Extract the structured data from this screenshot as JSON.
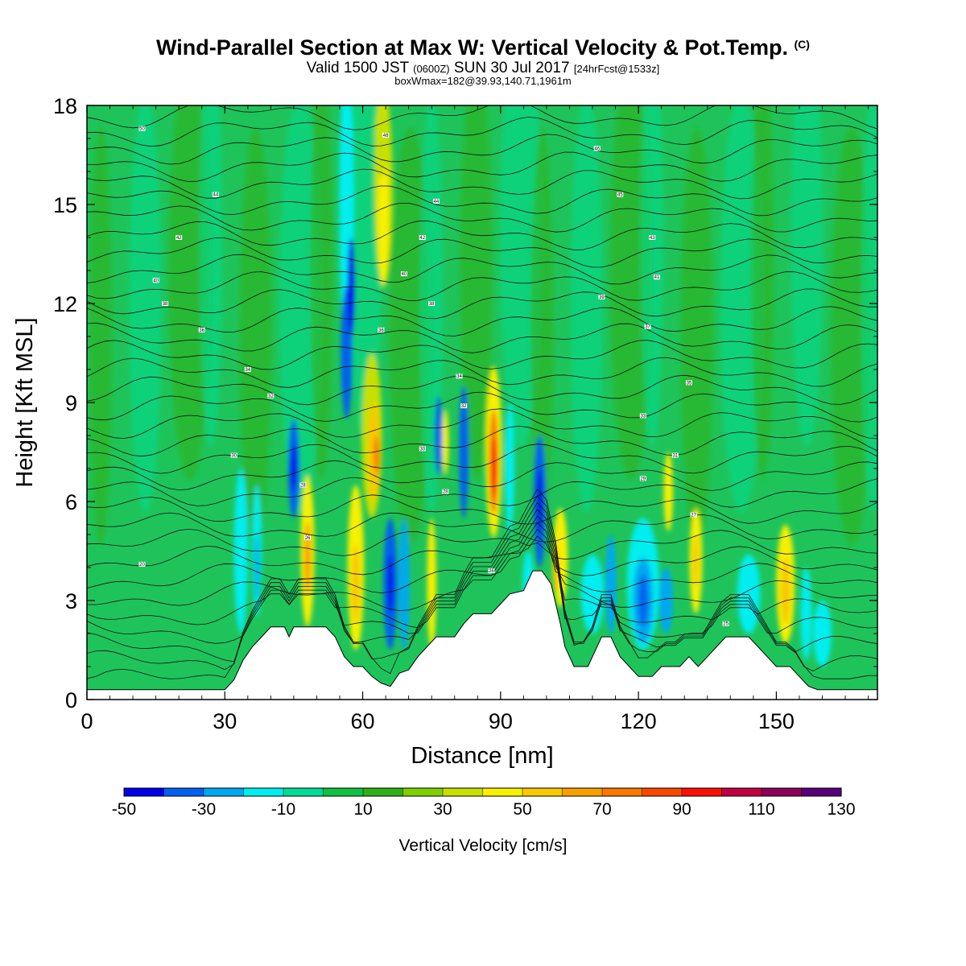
{
  "header": {
    "title": "Wind-Parallel Section at Max W: Vertical Velocity & Pot.Temp.",
    "title_tag": "(C)",
    "valid_a": "Valid 1500 JST",
    "valid_zulu": "(0600Z)",
    "valid_b": "SUN 30 Jul 2017",
    "forecast": "[24hrFcst@1533z]",
    "box_info": "boxWmax=182@39.93,140.71,1961m"
  },
  "chart_data": {
    "type": "heatmap",
    "xlabel": "Distance [nm]",
    "ylabel": "Height [Kft MSL]",
    "xlim": [
      0,
      172
    ],
    "ylim": [
      0,
      18
    ],
    "x_ticks": [
      0,
      30,
      60,
      90,
      120,
      150
    ],
    "y_ticks": [
      0,
      3,
      6,
      9,
      12,
      15,
      18
    ],
    "colorbar": {
      "title": "Vertical Velocity [cm/s]",
      "levels": [
        -50,
        -40,
        -30,
        -20,
        -10,
        0,
        10,
        20,
        30,
        40,
        50,
        60,
        70,
        80,
        90,
        100,
        110,
        120,
        130
      ],
      "labels": [
        "-50",
        "-30",
        "-10",
        "10",
        "30",
        "50",
        "70",
        "90",
        "110",
        "130"
      ],
      "colors": [
        "#0000e8",
        "#0060f0",
        "#00a8f0",
        "#00eef0",
        "#00dc96",
        "#10c040",
        "#2eae16",
        "#7ed000",
        "#c8e000",
        "#f8f000",
        "#f8c800",
        "#f8a000",
        "#f87800",
        "#f84800",
        "#f81000",
        "#c00040",
        "#8c0058",
        "#580078"
      ]
    },
    "terrain": [
      [
        0,
        0.3
      ],
      [
        30,
        0.3
      ],
      [
        32,
        0.6
      ],
      [
        34,
        1.2
      ],
      [
        36,
        1.6
      ],
      [
        38,
        1.9
      ],
      [
        40,
        2.2
      ],
      [
        43,
        2.2
      ],
      [
        44,
        1.9
      ],
      [
        45,
        2.2
      ],
      [
        52,
        2.2
      ],
      [
        54,
        1.9
      ],
      [
        56,
        1.3
      ],
      [
        58,
        1.0
      ],
      [
        60,
        1.0
      ],
      [
        62,
        0.7
      ],
      [
        64,
        0.5
      ],
      [
        66,
        0.4
      ],
      [
        68,
        0.8
      ],
      [
        70,
        0.9
      ],
      [
        72,
        1.3
      ],
      [
        74,
        1.6
      ],
      [
        76,
        1.9
      ],
      [
        80,
        1.9
      ],
      [
        82,
        2.3
      ],
      [
        84,
        2.6
      ],
      [
        88,
        2.6
      ],
      [
        90,
        2.9
      ],
      [
        92,
        3.2
      ],
      [
        95,
        3.3
      ],
      [
        96,
        3.6
      ],
      [
        97,
        3.9
      ],
      [
        99,
        3.9
      ],
      [
        101,
        3.5
      ],
      [
        103,
        2.3
      ],
      [
        104,
        1.6
      ],
      [
        105,
        1.3
      ],
      [
        106,
        1.0
      ],
      [
        109,
        1.0
      ],
      [
        110,
        1.3
      ],
      [
        111,
        1.6
      ],
      [
        112,
        1.9
      ],
      [
        114,
        1.9
      ],
      [
        115,
        1.6
      ],
      [
        116,
        1.3
      ],
      [
        118,
        1.0
      ],
      [
        120,
        0.7
      ],
      [
        123,
        0.7
      ],
      [
        125,
        1.0
      ],
      [
        129,
        1.0
      ],
      [
        131,
        1.3
      ],
      [
        133,
        1.0
      ],
      [
        135,
        1.3
      ],
      [
        137,
        1.6
      ],
      [
        139,
        1.9
      ],
      [
        144,
        1.9
      ],
      [
        146,
        1.6
      ],
      [
        148,
        1.3
      ],
      [
        150,
        1.0
      ],
      [
        153,
        1.0
      ],
      [
        155,
        0.7
      ],
      [
        157,
        0.4
      ],
      [
        159,
        0.3
      ],
      [
        172,
        0.3
      ]
    ],
    "isentrope_labels": [
      {
        "x": 12,
        "y": 17.3,
        "text": "50"
      },
      {
        "x": 65,
        "y": 17.1,
        "text": "48"
      },
      {
        "x": 111,
        "y": 16.7,
        "text": "46"
      },
      {
        "x": 28,
        "y": 15.3,
        "text": "44"
      },
      {
        "x": 76,
        "y": 15.1,
        "text": "44"
      },
      {
        "x": 116,
        "y": 15.3,
        "text": "45"
      },
      {
        "x": 20,
        "y": 14.0,
        "text": "42"
      },
      {
        "x": 73,
        "y": 14.0,
        "text": "42"
      },
      {
        "x": 123,
        "y": 14.0,
        "text": "43"
      },
      {
        "x": 15,
        "y": 12.7,
        "text": "40"
      },
      {
        "x": 69,
        "y": 12.9,
        "text": "40"
      },
      {
        "x": 124,
        "y": 12.8,
        "text": "41"
      },
      {
        "x": 17,
        "y": 12.0,
        "text": "38"
      },
      {
        "x": 75,
        "y": 12.0,
        "text": "38"
      },
      {
        "x": 112,
        "y": 12.2,
        "text": "39"
      },
      {
        "x": 25,
        "y": 11.2,
        "text": "36"
      },
      {
        "x": 64,
        "y": 11.2,
        "text": "36"
      },
      {
        "x": 122,
        "y": 11.3,
        "text": "37"
      },
      {
        "x": 35,
        "y": 10.0,
        "text": "34"
      },
      {
        "x": 81,
        "y": 9.8,
        "text": "34"
      },
      {
        "x": 131,
        "y": 9.6,
        "text": "35"
      },
      {
        "x": 40,
        "y": 9.2,
        "text": "32"
      },
      {
        "x": 82,
        "y": 8.9,
        "text": "32"
      },
      {
        "x": 121,
        "y": 8.6,
        "text": "33"
      },
      {
        "x": 32,
        "y": 7.4,
        "text": "30"
      },
      {
        "x": 73,
        "y": 7.6,
        "text": "30"
      },
      {
        "x": 128,
        "y": 7.4,
        "text": "31"
      },
      {
        "x": 47,
        "y": 6.5,
        "text": "28"
      },
      {
        "x": 78,
        "y": 6.3,
        "text": "28"
      },
      {
        "x": 121,
        "y": 6.7,
        "text": "29"
      },
      {
        "x": 48,
        "y": 4.9,
        "text": "26"
      },
      {
        "x": 88,
        "y": 3.9,
        "text": "26"
      },
      {
        "x": 132,
        "y": 5.6,
        "text": "27"
      },
      {
        "x": 12,
        "y": 4.1,
        "text": "20"
      },
      {
        "x": 139,
        "y": 2.3,
        "text": "25"
      }
    ]
  }
}
